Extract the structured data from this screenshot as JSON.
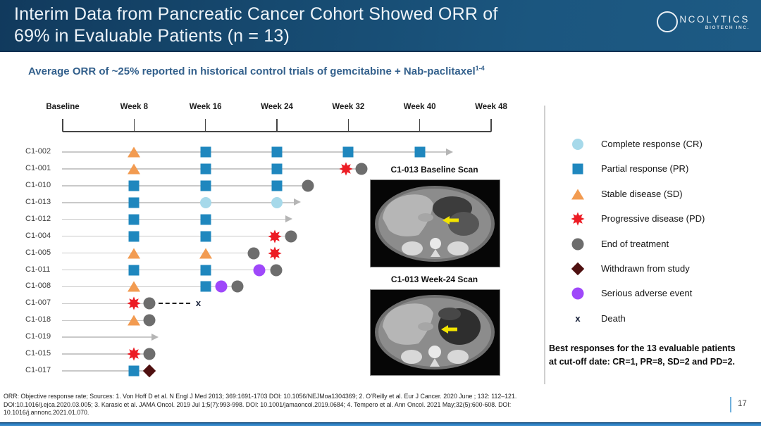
{
  "header": {
    "title_line1": "Interim Data from Pancreatic Cancer Cohort Showed ORR of",
    "title_line2": "69% in Evaluable Patients (n = 13)",
    "logo_main": "NCOLYTICS",
    "logo_sub": "BIOTECH INC."
  },
  "subtitle": {
    "text": "Average ORR of ~25% reported in historical control trials of gemcitabine + Nab-paclitaxel",
    "superscript": "1-4"
  },
  "scans": [
    {
      "label": "C1-013 Baseline Scan"
    },
    {
      "label": "C1-013 Week-24 Scan"
    }
  ],
  "notes": {
    "best_response_line1": "Best responses for the 13 evaluable patients",
    "best_response_line2": "at cut-off date: CR=1, PR=8, SD=2 and PD=2."
  },
  "footer": {
    "lines": [
      "ORR: Objective response rate; Sources: 1. Von Hoff D et al. N Engl J Med 2013; 369:1691-1703 DOI: 10.1056/NEJMoa1304369; 2. O’Reilly et al. Eur J Cancer. 2020 June ; 132: 112–121.",
      "DOI:10.1016/j.ejca.2020.03.005; 3. Karasic et al. JAMA Oncol. 2019 Jul 1;5(7):993-998. DOI: 10.1001/jamaoncol.2019.0684; 4. Tempero et al. Ann Oncol. 2021 May;32(5):600-608. DOI:",
      "10.1016/j.annonc.2021.01.070."
    ],
    "page_number": "17"
  },
  "colors": {
    "cr": "#a6d9ea",
    "pr": "#1f87be",
    "sd": "#f29b51",
    "pd": "#ec1c24",
    "eot": "#6d6d6d",
    "withdrawn": "#4f1010",
    "sae": "#9f48fa",
    "death": "#161f38",
    "track": "#c9c9c9",
    "arrow": "#b5b5b5",
    "axis": "#454545"
  },
  "chart_data": {
    "type": "swimmer",
    "title": "Swimmer plot of pancreatic cancer cohort responses by visit week",
    "x_axis": {
      "labels": [
        "Baseline",
        "Week 8",
        "Week 16",
        "Week 24",
        "Week 32",
        "Week 40",
        "Week 48"
      ],
      "weeks": [
        0,
        8,
        16,
        24,
        32,
        40,
        48
      ],
      "range_weeks": [
        0,
        48
      ]
    },
    "legend": [
      {
        "type": "CR",
        "label": "Complete response (CR)"
      },
      {
        "type": "PR",
        "label": "Partial response (PR)"
      },
      {
        "type": "SD",
        "label": "Stable disease (SD)"
      },
      {
        "type": "PD",
        "label": "Progressive disease (PD)"
      },
      {
        "type": "EOT",
        "label": "End of treatment"
      },
      {
        "type": "WD",
        "label": "Withdrawn from study"
      },
      {
        "type": "SAE",
        "label": "Serious adverse event"
      },
      {
        "type": "DEATH",
        "label": "Death"
      }
    ],
    "patients": [
      {
        "id": "C1-002",
        "events": [
          {
            "week": 8,
            "type": "SD"
          },
          {
            "week": 16,
            "type": "PR"
          },
          {
            "week": 24,
            "type": "PR"
          },
          {
            "week": 32,
            "type": "PR"
          },
          {
            "week": 40,
            "type": "PR"
          }
        ],
        "line_end_week": 43,
        "ongoing": true
      },
      {
        "id": "C1-001",
        "events": [
          {
            "week": 8,
            "type": "SD"
          },
          {
            "week": 16,
            "type": "PR"
          },
          {
            "week": 24,
            "type": "PR"
          },
          {
            "week": 31.7,
            "type": "PD"
          },
          {
            "week": 33.5,
            "type": "EOT"
          }
        ],
        "line_end_week": 33.5,
        "ongoing": false
      },
      {
        "id": "C1-010",
        "events": [
          {
            "week": 8,
            "type": "PR"
          },
          {
            "week": 16,
            "type": "PR"
          },
          {
            "week": 24,
            "type": "PR"
          },
          {
            "week": 27.5,
            "type": "EOT"
          }
        ],
        "line_end_week": 27.5,
        "ongoing": false
      },
      {
        "id": "C1-013",
        "events": [
          {
            "week": 8,
            "type": "PR"
          },
          {
            "week": 16,
            "type": "CR"
          },
          {
            "week": 24,
            "type": "CR"
          }
        ],
        "line_end_week": 26,
        "ongoing": true
      },
      {
        "id": "C1-012",
        "events": [
          {
            "week": 8,
            "type": "PR"
          },
          {
            "week": 16,
            "type": "PR"
          }
        ],
        "line_end_week": 25,
        "ongoing": true
      },
      {
        "id": "C1-004",
        "events": [
          {
            "week": 8,
            "type": "PR"
          },
          {
            "week": 16,
            "type": "PR"
          },
          {
            "week": 23.8,
            "type": "PD"
          },
          {
            "week": 25.6,
            "type": "EOT"
          }
        ],
        "line_end_week": 25.6,
        "ongoing": false
      },
      {
        "id": "C1-005",
        "events": [
          {
            "week": 8,
            "type": "SD"
          },
          {
            "week": 16,
            "type": "SD"
          },
          {
            "week": 21.4,
            "type": "EOT"
          },
          {
            "week": 23.8,
            "type": "PD"
          }
        ],
        "line_end_week": 21.4,
        "ongoing": false
      },
      {
        "id": "C1-011",
        "events": [
          {
            "week": 8,
            "type": "PR"
          },
          {
            "week": 16,
            "type": "PR"
          },
          {
            "week": 22,
            "type": "SAE"
          },
          {
            "week": 23.9,
            "type": "EOT"
          }
        ],
        "line_end_week": 23.9,
        "ongoing": false
      },
      {
        "id": "C1-008",
        "events": [
          {
            "week": 8,
            "type": "SD"
          },
          {
            "week": 16,
            "type": "PR"
          },
          {
            "week": 17.8,
            "type": "SAE"
          },
          {
            "week": 19.6,
            "type": "EOT"
          }
        ],
        "line_end_week": 19.6,
        "ongoing": false
      },
      {
        "id": "C1-007",
        "events": [
          {
            "week": 8,
            "type": "PD"
          },
          {
            "week": 9.7,
            "type": "EOT"
          },
          {
            "week": 15.2,
            "type": "DEATH"
          }
        ],
        "line_end_week": 9.7,
        "ongoing": false,
        "dashed_from_week": 10.7,
        "dashed_to_week": 14.3
      },
      {
        "id": "C1-018",
        "events": [
          {
            "week": 8,
            "type": "SD"
          },
          {
            "week": 9.7,
            "type": "EOT"
          }
        ],
        "line_end_week": 9.7,
        "ongoing": false
      },
      {
        "id": "C1-019",
        "events": [],
        "line_end_week": 10,
        "ongoing": true
      },
      {
        "id": "C1-015",
        "events": [
          {
            "week": 8,
            "type": "PD"
          },
          {
            "week": 9.7,
            "type": "EOT"
          }
        ],
        "line_end_week": 9.7,
        "ongoing": false
      },
      {
        "id": "C1-017",
        "events": [
          {
            "week": 8,
            "type": "PR"
          },
          {
            "week": 9.7,
            "type": "WD"
          }
        ],
        "line_end_week": 9.7,
        "ongoing": false
      }
    ],
    "summary": "Best responses for the 13 evaluable patients at cut-off date: CR=1, PR=8, SD=2 and PD=2."
  }
}
